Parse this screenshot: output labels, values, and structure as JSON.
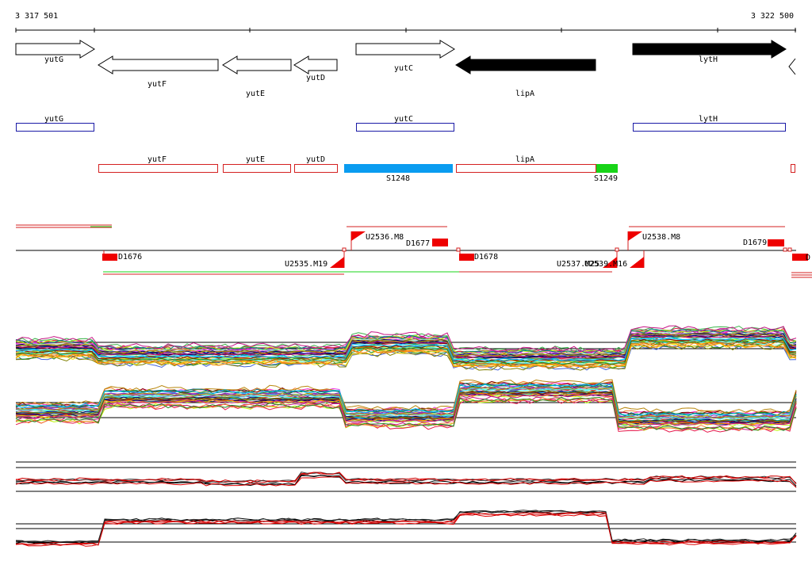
{
  "coords": {
    "start": "3 317 501",
    "end": "3 322 500"
  },
  "colors": {
    "blue_box": "#1a1aa6",
    "red_box": "#d42020",
    "segment_cyan": "#0a9cf0",
    "segment_green": "#18d418",
    "marker_red": "#ee0000",
    "trace_red": "#e00000"
  },
  "genes_top": [
    {
      "name": "yutG",
      "strand": "+",
      "filled": false
    },
    {
      "name": "yutF",
      "strand": "-",
      "filled": false
    },
    {
      "name": "yutE",
      "strand": "-",
      "filled": false
    },
    {
      "name": "yutD",
      "strand": "-",
      "filled": false
    },
    {
      "name": "yutC",
      "strand": "+",
      "filled": false
    },
    {
      "name": "lipA",
      "strand": "-",
      "filled": true
    },
    {
      "name": "lytH",
      "strand": "+",
      "filled": true
    }
  ],
  "boxes_plus": [
    "yutG",
    "yutC",
    "lytH"
  ],
  "boxes_minus": [
    "yutF",
    "yutE",
    "yutD",
    "lipA"
  ],
  "segments": [
    "S1248",
    "S1249"
  ],
  "markers_down": [
    "D1676",
    "D1678",
    "D1679"
  ],
  "markers_up": [
    "U2536.M8",
    "D1677",
    "U2538.M8"
  ],
  "markers_minus": [
    "U2535.M19",
    "U2537.M25",
    "U2539.M16"
  ],
  "icons": {
    "flag": "flag-icon",
    "partial_arrow": "arrow-left-icon"
  }
}
